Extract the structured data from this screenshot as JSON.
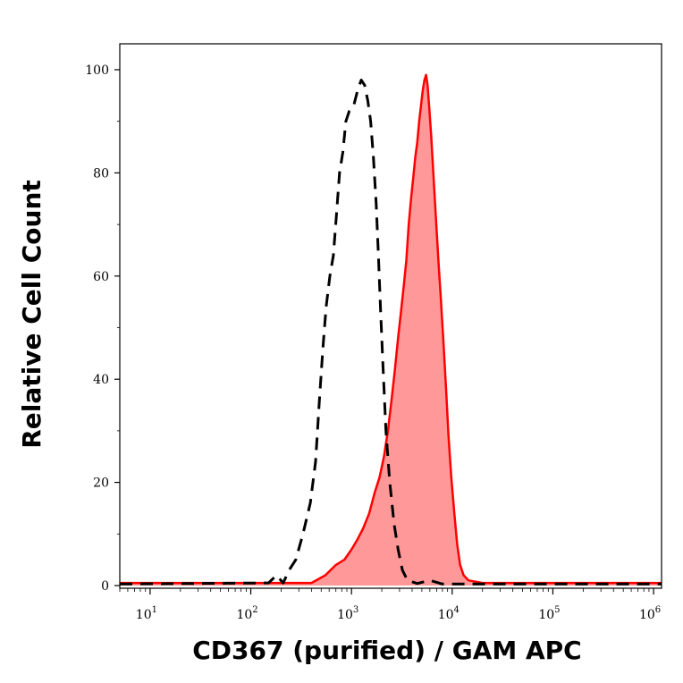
{
  "chart_data": {
    "type": "area",
    "xlabel": "CD367 (purified) / GAM APC",
    "ylabel": "Relative Cell Count",
    "x_scale": "log",
    "xlim": [
      5,
      1200000
    ],
    "ylim": [
      0,
      100
    ],
    "y_ticks": [
      0,
      20,
      40,
      60,
      80,
      100
    ],
    "x_ticks": [
      {
        "value": 10,
        "base": "10",
        "exp": "1"
      },
      {
        "value": 100,
        "base": "10",
        "exp": "2"
      },
      {
        "value": 1000,
        "base": "10",
        "exp": "3"
      },
      {
        "value": 10000,
        "base": "10",
        "exp": "4"
      },
      {
        "value": 100000,
        "base": "10",
        "exp": "5"
      },
      {
        "value": 1000000,
        "base": "10",
        "exp": "6"
      }
    ],
    "series": [
      {
        "style": "dashed-outline",
        "color": "#000000",
        "points": [
          [
            5,
            0.3
          ],
          [
            150,
            0.5
          ],
          [
            180,
            2
          ],
          [
            210,
            0.5
          ],
          [
            240,
            3
          ],
          [
            280,
            5
          ],
          [
            330,
            10
          ],
          [
            390,
            16
          ],
          [
            440,
            24
          ],
          [
            480,
            36
          ],
          [
            520,
            46
          ],
          [
            560,
            54
          ],
          [
            610,
            60
          ],
          [
            660,
            64
          ],
          [
            710,
            72
          ],
          [
            760,
            80
          ],
          [
            820,
            84
          ],
          [
            880,
            90
          ],
          [
            950,
            92
          ],
          [
            1050,
            93
          ],
          [
            1150,
            96
          ],
          [
            1250,
            98
          ],
          [
            1350,
            97
          ],
          [
            1450,
            94
          ],
          [
            1550,
            90
          ],
          [
            1650,
            83
          ],
          [
            1760,
            74
          ],
          [
            1850,
            64
          ],
          [
            1950,
            53
          ],
          [
            2050,
            43
          ],
          [
            2200,
            30
          ],
          [
            2400,
            20
          ],
          [
            2650,
            12
          ],
          [
            2900,
            7
          ],
          [
            3200,
            3
          ],
          [
            3600,
            1
          ],
          [
            4500,
            0.4
          ],
          [
            6000,
            1
          ],
          [
            8000,
            0.3
          ],
          [
            1200000,
            0.3
          ]
        ]
      },
      {
        "style": "filled",
        "color": "#ff0000",
        "fill": "#ff9999",
        "points": [
          [
            5,
            0.5
          ],
          [
            400,
            0.5
          ],
          [
            550,
            2
          ],
          [
            700,
            4
          ],
          [
            850,
            5
          ],
          [
            1000,
            7
          ],
          [
            1150,
            9
          ],
          [
            1300,
            11
          ],
          [
            1500,
            14
          ],
          [
            1700,
            18
          ],
          [
            1900,
            21
          ],
          [
            2100,
            25
          ],
          [
            2300,
            30
          ],
          [
            2500,
            36
          ],
          [
            2700,
            42
          ],
          [
            2900,
            48
          ],
          [
            3100,
            53
          ],
          [
            3300,
            58
          ],
          [
            3500,
            63
          ],
          [
            3700,
            70
          ],
          [
            3900,
            75
          ],
          [
            4100,
            79
          ],
          [
            4300,
            83
          ],
          [
            4500,
            86
          ],
          [
            4700,
            90
          ],
          [
            4900,
            93
          ],
          [
            5100,
            96
          ],
          [
            5300,
            98
          ],
          [
            5500,
            99
          ],
          [
            5700,
            97
          ],
          [
            5900,
            93
          ],
          [
            6200,
            87
          ],
          [
            6500,
            80
          ],
          [
            6900,
            71
          ],
          [
            7300,
            63
          ],
          [
            7700,
            56
          ],
          [
            8200,
            47
          ],
          [
            8700,
            38
          ],
          [
            9200,
            29
          ],
          [
            9800,
            21
          ],
          [
            10500,
            14
          ],
          [
            11200,
            8
          ],
          [
            12000,
            4
          ],
          [
            13000,
            2
          ],
          [
            14500,
            1
          ],
          [
            20000,
            0.5
          ],
          [
            1200000,
            0.5
          ]
        ]
      }
    ]
  }
}
